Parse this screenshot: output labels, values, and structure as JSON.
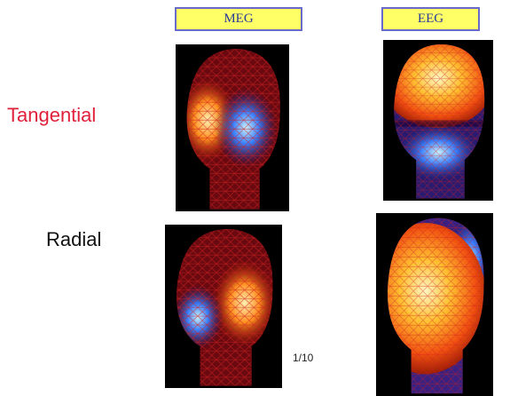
{
  "columns": [
    "MEG",
    "EEG"
  ],
  "rows": [
    "Tangential",
    "Radial"
  ],
  "note": "1/10"
}
